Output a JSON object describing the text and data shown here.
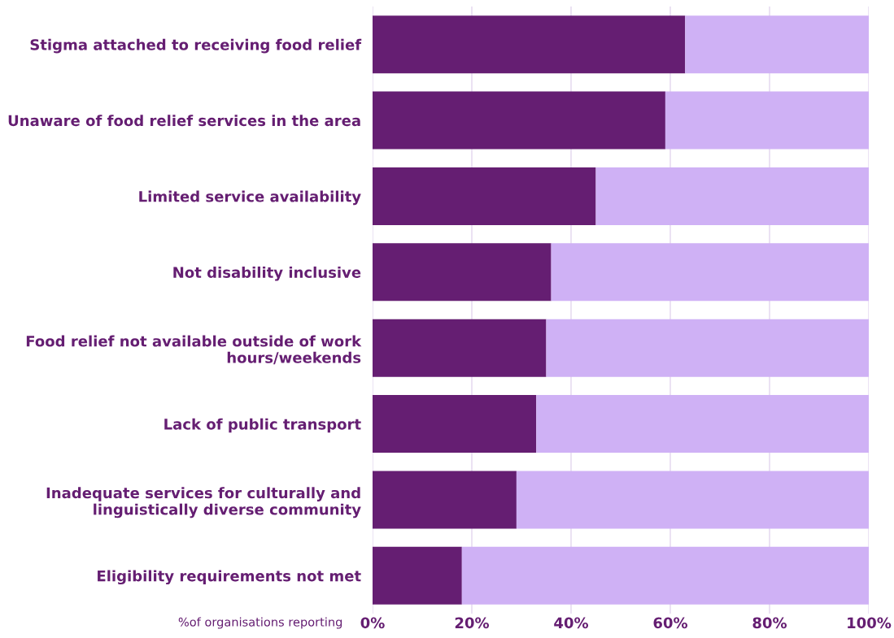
{
  "chart_data": {
    "type": "bar",
    "orientation": "horizontal",
    "stacked": true,
    "categories": [
      "Stigma attached to receiving food relief",
      "Unaware of food relief services in the area",
      "Limited service availability",
      "Not disability inclusive",
      "Food relief not available outside of work\nhours/weekends",
      "Lack of public transport",
      "Inadequate services for culturally and\nlinguistically diverse community",
      "Eligibility requirements not met"
    ],
    "series": [
      {
        "color": "#651e72",
        "values": [
          63,
          59,
          45,
          36,
          35,
          33,
          29,
          18
        ]
      },
      {
        "color": "#cfb1f5",
        "values": [
          37,
          41,
          55,
          64,
          65,
          67,
          71,
          82
        ]
      }
    ],
    "xlabel": "%of organisations reporting",
    "xlim": [
      0,
      100
    ],
    "xticks": [
      {
        "value": 0,
        "label": "0%"
      },
      {
        "value": 20,
        "label": "20%"
      },
      {
        "value": 40,
        "label": "40%"
      },
      {
        "value": 60,
        "label": "60%"
      },
      {
        "value": 80,
        "label": "80%"
      },
      {
        "value": 100,
        "label": "100%"
      }
    ],
    "grid": "x"
  }
}
